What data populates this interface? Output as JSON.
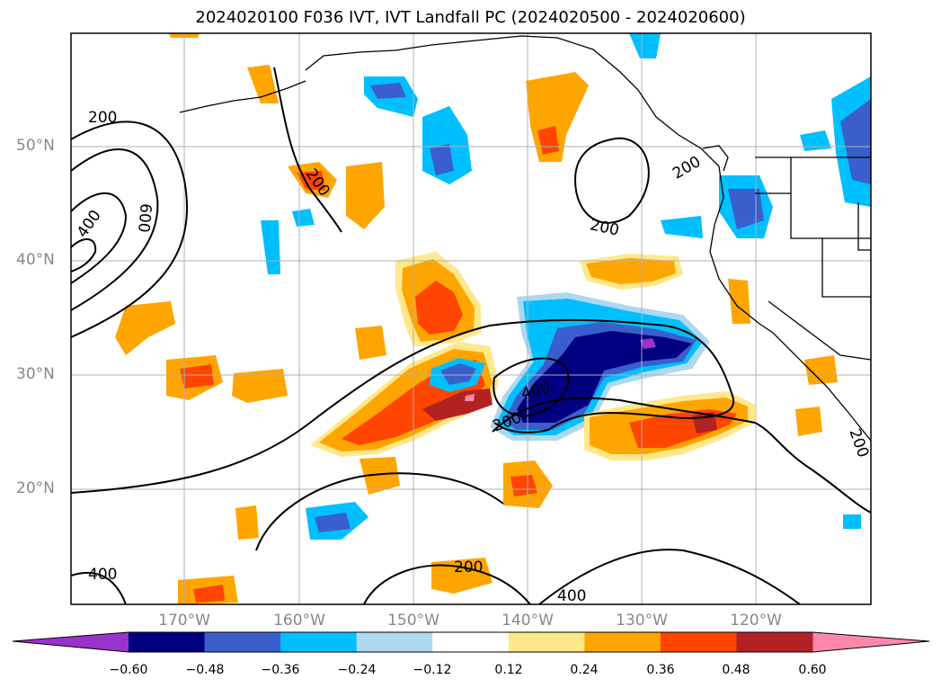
{
  "title": "2024020100 F036 IVT, IVT Landfall PC (2024020500 - 2024020600)",
  "latitude_labels": [
    "50°N",
    "40°N",
    "30°N",
    "20°N"
  ],
  "longitude_labels": [
    "170°W",
    "160°W",
    "150°W",
    "140°W",
    "130°W",
    "120°W"
  ],
  "contour_labels": [
    "200",
    "400",
    "600"
  ],
  "colorbar": {
    "ticks": [
      "−0.60",
      "−0.48",
      "−0.36",
      "−0.24",
      "−0.12",
      "0.12",
      "0.24",
      "0.36",
      "0.48",
      "0.60"
    ],
    "colors": [
      "#9933cc",
      "#000080",
      "#3a5fcd",
      "#00bfff",
      "#add8f0",
      "#ffffff",
      "#ffe88a",
      "#ffa500",
      "#ff4500",
      "#b22222",
      "#ff88aa"
    ],
    "extend": "both"
  },
  "map": {
    "projection": "plate carree",
    "gridlines": true,
    "coastlines": true,
    "state_borders": true,
    "field_colors": {
      "lightblue": "#add8f0",
      "cyan": "#00bfff",
      "blue": "#3a5fcd",
      "navy": "#000080",
      "purple": "#9933cc",
      "yellow": "#ffe88a",
      "orange": "#ffa500",
      "redorange": "#ff4500",
      "darkred": "#b22222",
      "pink": "#ff88aa"
    }
  }
}
